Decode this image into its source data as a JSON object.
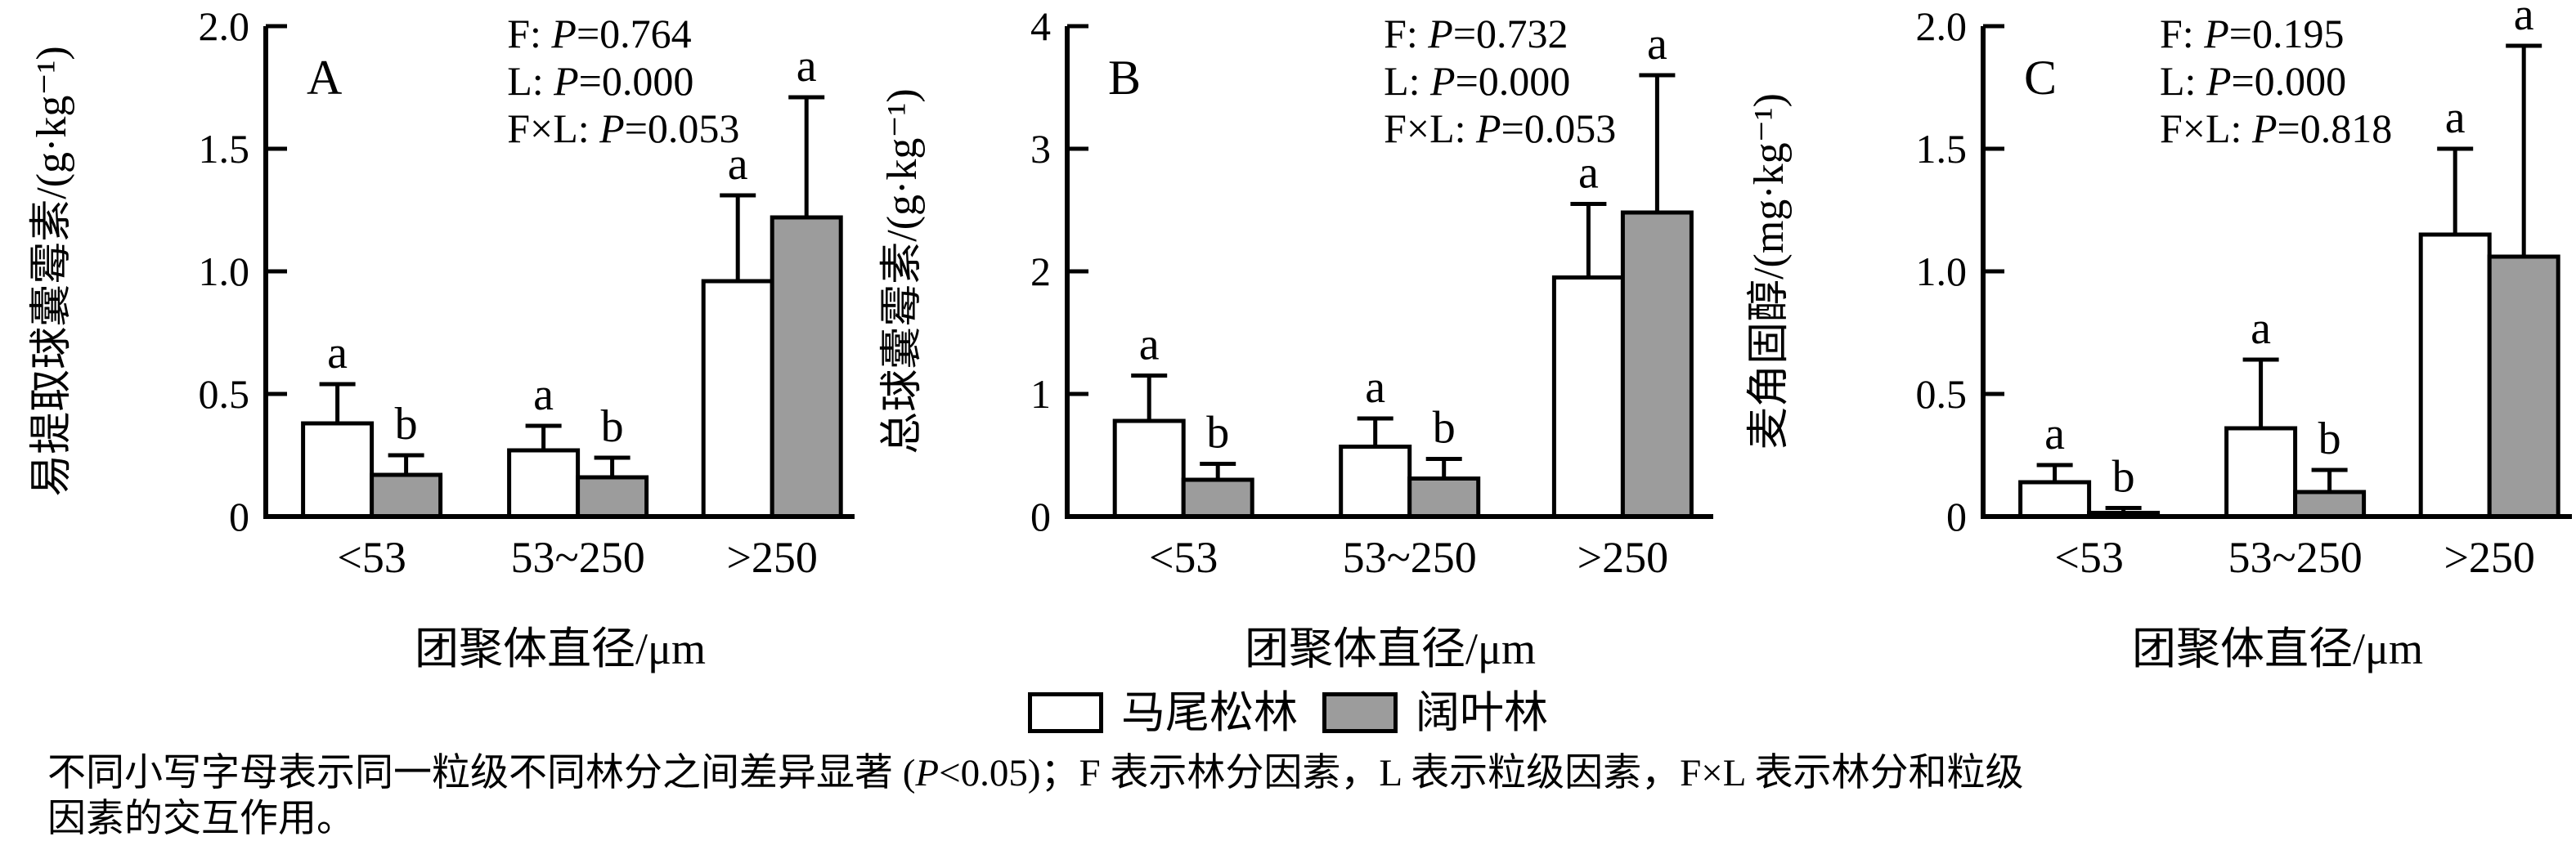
{
  "figure_kind": "three-panel grouped bar chart with error bars",
  "chart_data": [
    {
      "type": "bar",
      "panel_label": "A",
      "ylabel": "易提取球囊霉素/(g·kg⁻¹)",
      "xlabel": "团聚体直径/μm",
      "ylim": [
        0,
        2.0
      ],
      "yticks": [
        0,
        0.5,
        1.0,
        1.5,
        2.0
      ],
      "ytick_labels": [
        "0",
        "0.5",
        "1.0",
        "1.5",
        "2.0"
      ],
      "categories": [
        "<53",
        "53~250",
        ">250"
      ],
      "series": [
        {
          "name": "马尾松林",
          "fill": "#ffffff",
          "values": [
            0.38,
            0.27,
            0.96
          ],
          "errors_up": [
            0.16,
            0.1,
            0.35
          ],
          "sig_letters": [
            "a",
            "a",
            "a"
          ]
        },
        {
          "name": "阔叶林",
          "fill": "#9c9c9c",
          "values": [
            0.17,
            0.16,
            1.22
          ],
          "errors_up": [
            0.08,
            0.08,
            0.49
          ],
          "sig_letters": [
            "b",
            "b",
            "a"
          ]
        }
      ],
      "annotations": [
        "F: P=0.764",
        "L: P=0.000",
        "F×L: P=0.053"
      ],
      "grid": false,
      "legend_position": "shared-bottom"
    },
    {
      "type": "bar",
      "panel_label": "B",
      "ylabel": "总球囊霉素/(g·kg⁻¹)",
      "xlabel": "团聚体直径/μm",
      "ylim": [
        0,
        4
      ],
      "yticks": [
        0,
        1,
        2,
        3,
        4
      ],
      "ytick_labels": [
        "0",
        "1",
        "2",
        "3",
        "4"
      ],
      "categories": [
        "<53",
        "53~250",
        ">250"
      ],
      "series": [
        {
          "name": "马尾松林",
          "fill": "#ffffff",
          "values": [
            0.78,
            0.57,
            1.95
          ],
          "errors_up": [
            0.37,
            0.23,
            0.6
          ],
          "sig_letters": [
            "a",
            "a",
            "a"
          ]
        },
        {
          "name": "阔叶林",
          "fill": "#9c9c9c",
          "values": [
            0.3,
            0.31,
            2.48
          ],
          "errors_up": [
            0.13,
            0.16,
            1.12
          ],
          "sig_letters": [
            "b",
            "b",
            "a"
          ]
        }
      ],
      "annotations": [
        "F: P=0.732",
        "L: P=0.000",
        "F×L: P=0.053"
      ],
      "grid": false,
      "legend_position": "shared-bottom"
    },
    {
      "type": "bar",
      "panel_label": "C",
      "ylabel": "麦角固醇/(mg·kg⁻¹)",
      "xlabel": "团聚体直径/μm",
      "ylim": [
        0,
        2.0
      ],
      "yticks": [
        0,
        0.5,
        1.0,
        1.5,
        2.0
      ],
      "ytick_labels": [
        "0",
        "0.5",
        "1.0",
        "1.5",
        "2.0"
      ],
      "categories": [
        "<53",
        "53~250",
        ">250"
      ],
      "series": [
        {
          "name": "马尾松林",
          "fill": "#ffffff",
          "values": [
            0.14,
            0.36,
            1.15
          ],
          "errors_up": [
            0.07,
            0.28,
            0.35
          ],
          "sig_letters": [
            "a",
            "a",
            "a"
          ]
        },
        {
          "name": "阔叶林",
          "fill": "#9c9c9c",
          "values": [
            0.015,
            0.1,
            1.06
          ],
          "errors_up": [
            0.02,
            0.09,
            0.86
          ],
          "sig_letters": [
            "b",
            "b",
            "a"
          ]
        }
      ],
      "annotations": [
        "F: P=0.195",
        "L: P=0.000",
        "F×L: P=0.818"
      ],
      "grid": false,
      "legend_position": "shared-bottom"
    }
  ],
  "legend": {
    "items": [
      {
        "label": "马尾松林",
        "fill": "#ffffff"
      },
      {
        "label": "阔叶林",
        "fill": "#9c9c9c"
      }
    ]
  },
  "footnote": {
    "line1": "不同小写字母表示同一粒级不同林分之间差异显著 (P<0.05)；F 表示林分因素，L 表示粒级因素，F×L 表示林分和粒级",
    "line2": "因素的交互作用。"
  },
  "colors": {
    "bar_white": "#ffffff",
    "bar_gray": "#9c9c9c",
    "stroke": "#000000",
    "background": "#ffffff"
  }
}
